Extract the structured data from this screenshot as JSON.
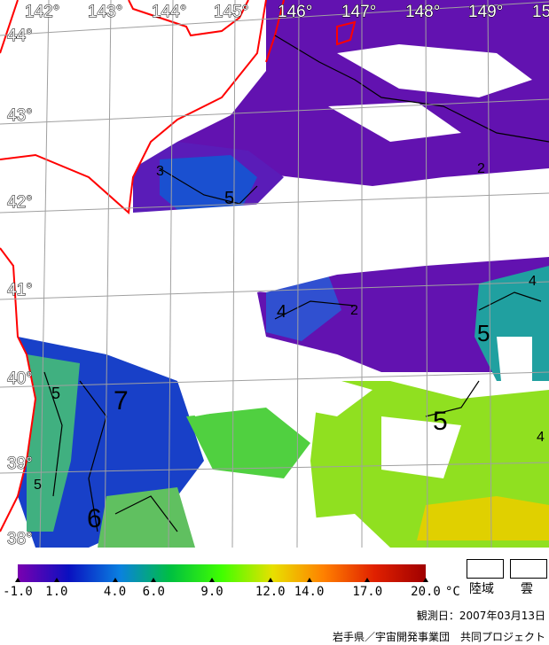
{
  "map": {
    "longitude_labels": [
      "142°",
      "143°",
      "144°",
      "145°",
      "146°",
      "147°",
      "148°",
      "149°",
      "15"
    ],
    "latitude_labels": [
      "44°",
      "43°",
      "42°",
      "41°",
      "40°",
      "39°",
      "38°"
    ],
    "contour_labels": [
      "3",
      "5",
      "2",
      "2",
      "4",
      "4",
      "5",
      "5",
      "7",
      "5",
      "6",
      "5",
      "4"
    ],
    "colors": {
      "coastline": "#ff0000",
      "grid": "#a0a0a0",
      "cloud": "#ffffff"
    }
  },
  "legend": {
    "ticks": [
      "-1.0",
      "1.0",
      "4.0",
      "6.0",
      "9.0",
      "12.0",
      "14.0",
      "17.0",
      "20.0"
    ],
    "tick_values": [
      -1.0,
      1.0,
      4.0,
      6.0,
      9.0,
      12.0,
      14.0,
      17.0,
      20.0
    ],
    "unit": "°C",
    "range": [
      -1.0,
      20.0
    ],
    "colormap": [
      "#7a00b0",
      "#0a10c0",
      "#0a80e0",
      "#00c040",
      "#40ff00",
      "#e8e000",
      "#ff8000",
      "#e02000",
      "#a00000"
    ],
    "land_label": "陸域",
    "cloud_label": "雲"
  },
  "observation_date": "観測日：2007年03月13日",
  "credit": "岩手県／宇宙開発事業団　共同プロジェクト"
}
